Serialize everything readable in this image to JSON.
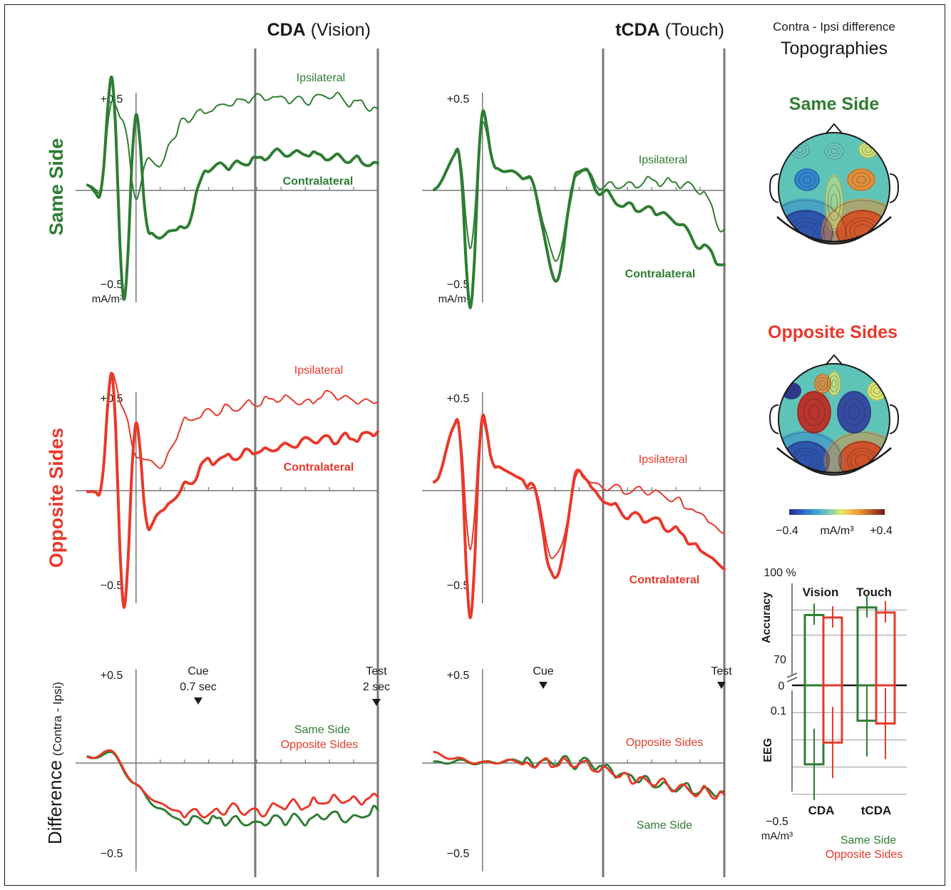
{
  "colors": {
    "green": "#2e7d32",
    "red": "#e8392b",
    "axis": "#777777",
    "text": "#1a1a1a"
  },
  "titles": {
    "cda_bold": "CDA",
    "cda_rest": " (Vision)",
    "tcda_bold": "tCDA",
    "tcda_rest": " (Touch)",
    "topo_line1": "Contra - Ipsi difference",
    "topo_line2": "Topographies",
    "same_side": "Same Side",
    "opposite_sides": "Opposite Sides"
  },
  "row_labels": {
    "same": "Same Side",
    "opposite": "Opposite Sides",
    "diff_main": "Difference",
    "diff_sub": "(Contra - Ipsi)"
  },
  "axis_labels": {
    "pos": "+0.5",
    "neg": "−0.5",
    "unit": "mA/m³"
  },
  "trace_labels": {
    "ipsi": "Ipsilateral",
    "contra": "Contralateral"
  },
  "events": {
    "cue": "Cue",
    "cue_time": "0.7 sec",
    "test": "Test",
    "test_time": "2 sec"
  },
  "diff_legend": {
    "same": "Same Side",
    "opposite": "Opposite Sides"
  },
  "colorbar": {
    "min": "−0.4",
    "unit": "mA/m³",
    "max": "+0.4"
  },
  "chart_data": [
    {
      "type": "line",
      "panel": "CDA Vision - Same Side",
      "ylim": [
        -0.5,
        0.5
      ],
      "xlim": [
        -0.5,
        2.0
      ],
      "x": [
        -0.4,
        -0.3,
        -0.2,
        -0.1,
        0.0,
        0.1,
        0.2,
        0.3,
        0.4,
        0.6,
        0.8,
        1.0,
        1.2,
        1.4,
        1.6,
        1.8,
        2.0
      ],
      "series": [
        {
          "name": "Ipsilateral",
          "values": [
            0.02,
            0.0,
            0.45,
            0.35,
            -0.05,
            0.17,
            0.12,
            0.26,
            0.37,
            0.41,
            0.45,
            0.48,
            0.47,
            0.46,
            0.49,
            0.45,
            0.42
          ]
        },
        {
          "name": "Contralateral",
          "values": [
            0.02,
            -0.02,
            0.57,
            -0.55,
            0.38,
            -0.2,
            -0.25,
            -0.2,
            -0.18,
            0.12,
            0.13,
            0.16,
            0.2,
            0.19,
            0.17,
            0.15,
            0.14
          ]
        }
      ]
    },
    {
      "type": "line",
      "panel": "tCDA Touch - Same Side",
      "ylim": [
        -0.5,
        0.5
      ],
      "xlim": [
        -0.5,
        2.0
      ],
      "x": [
        -0.4,
        -0.2,
        -0.1,
        0.0,
        0.1,
        0.2,
        0.4,
        0.6,
        0.8,
        1.0,
        1.2,
        1.4,
        1.6,
        1.8,
        2.0
      ],
      "series": [
        {
          "name": "Ipsilateral",
          "values": [
            0.0,
            0.2,
            -0.3,
            0.35,
            0.12,
            0.1,
            0.05,
            -0.35,
            0.1,
            0.02,
            0.02,
            0.05,
            0.04,
            0.0,
            -0.2
          ]
        },
        {
          "name": "Contralateral",
          "values": [
            0.0,
            0.2,
            -0.6,
            0.4,
            0.12,
            0.1,
            0.05,
            -0.45,
            0.12,
            -0.02,
            -0.08,
            -0.1,
            -0.15,
            -0.28,
            -0.38
          ]
        }
      ]
    },
    {
      "type": "line",
      "panel": "CDA Vision - Opposite Sides",
      "ylim": [
        -0.5,
        0.5
      ],
      "xlim": [
        -0.5,
        2.0
      ],
      "x": [
        -0.4,
        -0.3,
        -0.2,
        -0.1,
        0.0,
        0.1,
        0.2,
        0.3,
        0.4,
        0.6,
        0.8,
        1.0,
        1.2,
        1.4,
        1.6,
        1.8,
        2.0
      ],
      "series": [
        {
          "name": "Ipsilateral",
          "values": [
            0.0,
            -0.02,
            0.6,
            0.4,
            0.18,
            0.15,
            0.12,
            0.22,
            0.35,
            0.4,
            0.42,
            0.45,
            0.47,
            0.45,
            0.49,
            0.46,
            0.45
          ]
        },
        {
          "name": "Contralateral",
          "values": [
            0.0,
            -0.02,
            0.6,
            -0.6,
            0.35,
            -0.2,
            -0.1,
            -0.06,
            0.02,
            0.15,
            0.17,
            0.2,
            0.22,
            0.25,
            0.26,
            0.27,
            0.3
          ]
        }
      ]
    },
    {
      "type": "line",
      "panel": "tCDA Touch - Opposite Sides",
      "ylim": [
        -0.5,
        0.5
      ],
      "xlim": [
        -0.5,
        2.0
      ],
      "x": [
        -0.4,
        -0.2,
        -0.1,
        0.0,
        0.1,
        0.2,
        0.4,
        0.6,
        0.8,
        1.0,
        1.2,
        1.4,
        1.6,
        1.8,
        2.0
      ],
      "series": [
        {
          "name": "Ipsilateral",
          "values": [
            0.05,
            0.35,
            -0.3,
            0.35,
            0.12,
            0.1,
            0.03,
            -0.35,
            0.08,
            0.02,
            0.0,
            0.0,
            -0.05,
            -0.12,
            -0.22
          ]
        },
        {
          "name": "Contralateral",
          "values": [
            0.05,
            0.35,
            -0.65,
            0.38,
            0.12,
            0.1,
            0.03,
            -0.45,
            0.1,
            -0.05,
            -0.12,
            -0.15,
            -0.2,
            -0.3,
            -0.4
          ]
        }
      ]
    },
    {
      "type": "line",
      "panel": "CDA Vision - Difference (Contra - Ipsi)",
      "ylim": [
        -0.5,
        0.5
      ],
      "xlim": [
        -0.5,
        2.0
      ],
      "x": [
        -0.4,
        -0.2,
        0.0,
        0.2,
        0.4,
        0.6,
        0.8,
        1.0,
        1.2,
        1.4,
        1.6,
        1.8,
        2.0
      ],
      "series": [
        {
          "name": "Same Side",
          "values": [
            0.03,
            0.05,
            -0.12,
            -0.25,
            -0.3,
            -0.3,
            -0.3,
            -0.32,
            -0.3,
            -0.3,
            -0.28,
            -0.3,
            -0.25
          ]
        },
        {
          "name": "Opposite Sides",
          "values": [
            0.03,
            0.06,
            -0.12,
            -0.22,
            -0.26,
            -0.27,
            -0.24,
            -0.26,
            -0.22,
            -0.22,
            -0.2,
            -0.2,
            -0.18
          ]
        }
      ]
    },
    {
      "type": "line",
      "panel": "tCDA Touch - Difference (Contra - Ipsi)",
      "ylim": [
        -0.5,
        0.5
      ],
      "xlim": [
        -0.5,
        2.0
      ],
      "x": [
        -0.4,
        -0.2,
        0.0,
        0.2,
        0.4,
        0.6,
        0.8,
        1.0,
        1.2,
        1.4,
        1.6,
        1.8,
        2.0
      ],
      "series": [
        {
          "name": "Same Side",
          "values": [
            0.0,
            0.01,
            0.0,
            0.01,
            0.01,
            0.01,
            0.0,
            -0.02,
            -0.07,
            -0.1,
            -0.13,
            -0.14,
            -0.15
          ]
        },
        {
          "name": "Opposite Sides",
          "values": [
            0.05,
            0.02,
            0.0,
            0.01,
            0.0,
            0.0,
            0.0,
            -0.04,
            -0.08,
            -0.1,
            -0.13,
            -0.15,
            -0.17
          ]
        }
      ]
    },
    {
      "type": "bar",
      "panel": "Accuracy and EEG summary",
      "accuracy_label": "Accuracy",
      "accuracy_top": "100 %",
      "accuracy_mid": "70",
      "eeg_label": "EEG",
      "zero_label": "0",
      "eeg_tick": "0.1",
      "eeg_bottom": "−0.5",
      "unit": "mA/m³",
      "headers": [
        "Vision",
        "Touch"
      ],
      "categories": [
        "CDA",
        "tCDA"
      ],
      "legend": [
        "Same Side",
        "Opposite Sides"
      ],
      "accuracy": {
        "Same Side": [
          88,
          91
        ],
        "Opposite Sides": [
          87,
          89
        ]
      },
      "eeg": {
        "Same Side": [
          -0.29,
          -0.13
        ],
        "Opposite Sides": [
          -0.21,
          -0.14
        ]
      }
    }
  ]
}
